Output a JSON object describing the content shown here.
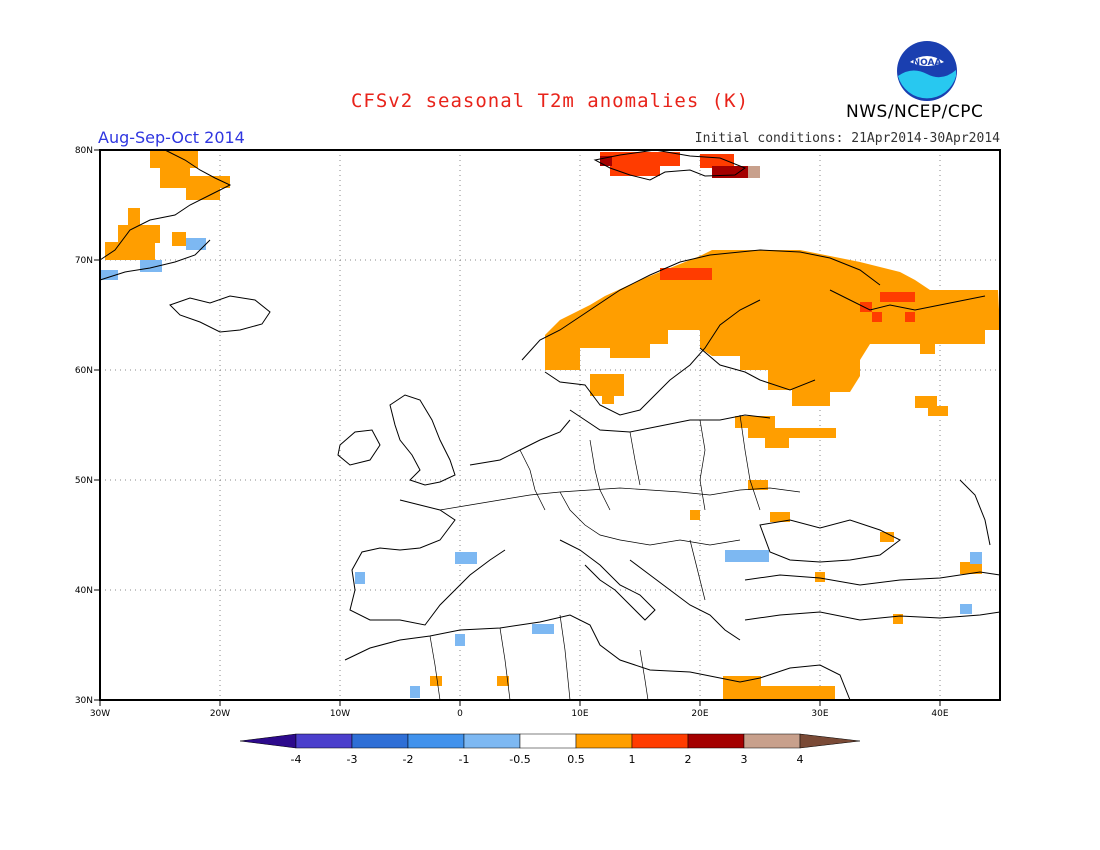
{
  "header": {
    "title": "CFSv2 seasonal T2m anomalies (K)",
    "organization": "NWS/NCEP/CPC",
    "season": "Aug-Sep-Oct 2014",
    "initial_conditions": "Initial conditions: 21Apr2014-30Apr2014",
    "logo_text": "NOAA"
  },
  "map": {
    "lon_range": [
      -30,
      45
    ],
    "lat_range": [
      30,
      80
    ],
    "x_ticks": [
      "30W",
      "20W",
      "10W",
      "0",
      "10E",
      "20E",
      "30E",
      "40E"
    ],
    "y_ticks": [
      "80N",
      "70N",
      "60N",
      "50N",
      "40N",
      "30N"
    ],
    "gridlines": "dotted"
  },
  "colorbar": {
    "labels": [
      "-4",
      "-3",
      "-2",
      "-1",
      "-0.5",
      "0.5",
      "1",
      "2",
      "3",
      "4"
    ],
    "colors": [
      "#2d0a8c",
      "#4b3fcc",
      "#2f6fd6",
      "#4192ec",
      "#7db8f2",
      "#ffffff",
      "#ff9e00",
      "#ff3c00",
      "#a40000",
      "#c8a08c",
      "#7a4a36"
    ]
  },
  "anomaly_regions": [
    {
      "name": "greenland-coast",
      "class": "0.5-1",
      "color": "#ff9e00"
    },
    {
      "name": "fennoscandia",
      "class": "0.5-1",
      "color": "#ff9e00"
    },
    {
      "name": "svalbard",
      "class": "1-2",
      "color": "#ff3c00"
    },
    {
      "name": "iberia",
      "class": "-1 to -0.5",
      "color": "#7db8f2"
    }
  ]
}
